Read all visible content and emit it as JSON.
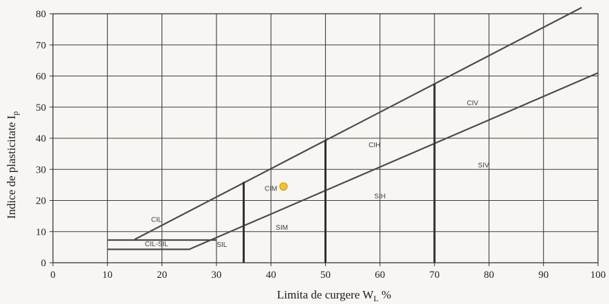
{
  "chart_data": {
    "type": "scatter",
    "title": "",
    "xlabel": "Limita de curgere W",
    "xlabel_sub": "L",
    "xlabel_unit": " %",
    "ylabel": "Indice de plasticitate I",
    "ylabel_sub": "p",
    "xlim": [
      0,
      100
    ],
    "ylim": [
      0,
      80
    ],
    "x_ticks": [
      0,
      10,
      20,
      30,
      40,
      50,
      60,
      70,
      80,
      90,
      100
    ],
    "y_ticks": [
      0,
      10,
      20,
      30,
      40,
      50,
      60,
      70,
      80
    ],
    "grid": true,
    "boundary_lines": [
      {
        "points": [
          [
            15,
            7.5
          ],
          [
            97,
            82
          ]
        ]
      },
      {
        "points": [
          [
            10,
            7.3
          ],
          [
            30,
            7.3
          ]
        ]
      },
      {
        "points": [
          [
            10,
            4.3
          ],
          [
            25,
            4.3
          ],
          [
            100,
            61
          ]
        ]
      }
    ],
    "vertical_limits": [
      {
        "x": 35,
        "y_top": 26
      },
      {
        "x": 50,
        "y_top": 39.5
      },
      {
        "x": 70,
        "y_top": 57.5
      }
    ],
    "region_labels": [
      {
        "text": "CIL",
        "x": 19,
        "y": 14
      },
      {
        "text": "CIL-SIL",
        "x": 19,
        "y": 6.2
      },
      {
        "text": "SIL",
        "x": 31,
        "y": 6
      },
      {
        "text": "CIM",
        "x": 40,
        "y": 24
      },
      {
        "text": "SIM",
        "x": 42,
        "y": 11.5
      },
      {
        "text": "CIH",
        "x": 59,
        "y": 38
      },
      {
        "text": "SIH",
        "x": 60,
        "y": 21.5
      },
      {
        "text": "CIV",
        "x": 77,
        "y": 51.5
      },
      {
        "text": "SIV",
        "x": 79,
        "y": 31.5
      }
    ],
    "points": [
      {
        "x": 42.3,
        "y": 24.5,
        "color": "#f5c22b"
      }
    ]
  }
}
